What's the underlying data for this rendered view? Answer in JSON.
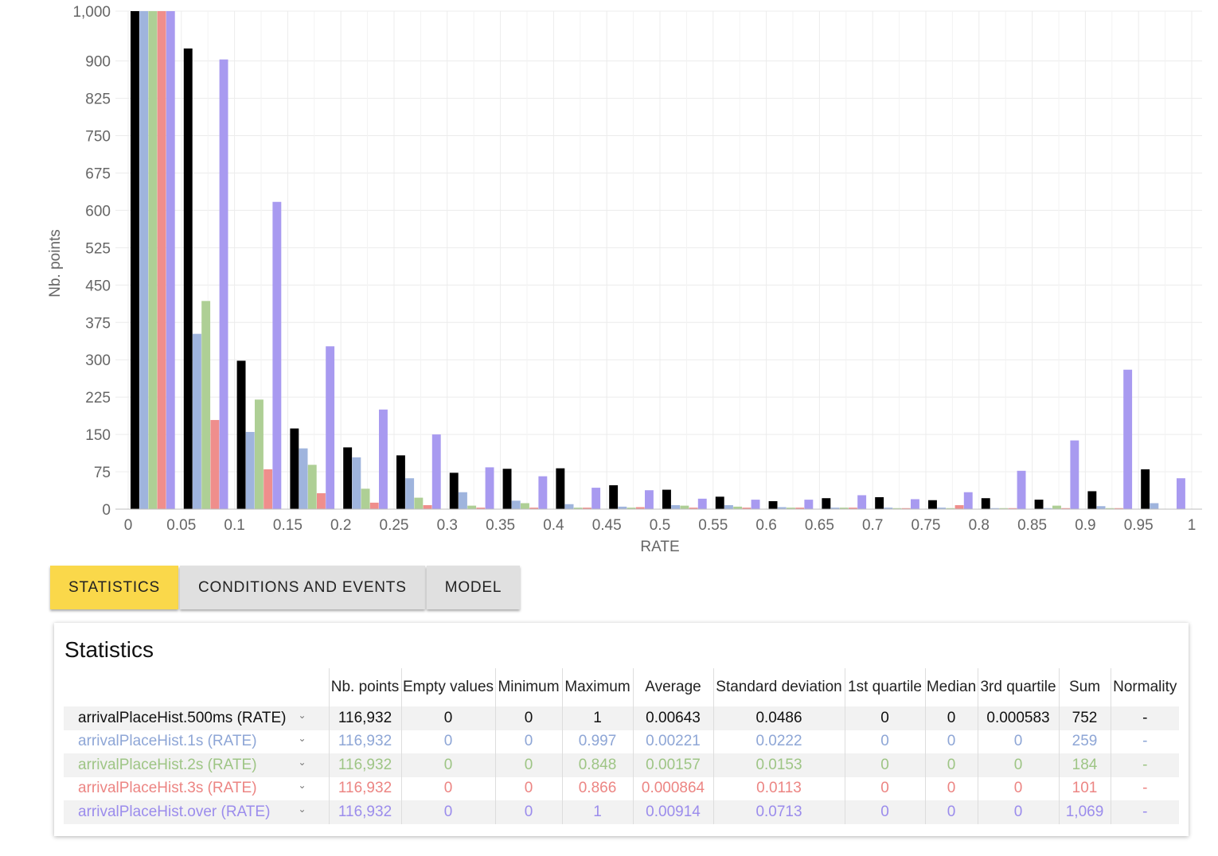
{
  "chart_data": {
    "type": "bar",
    "xlabel": "RATE",
    "ylabel": "Nb. points",
    "ylim": [
      0,
      1000
    ],
    "yticks": [
      0,
      75,
      150,
      225,
      300,
      375,
      450,
      525,
      600,
      675,
      750,
      825,
      900,
      1000
    ],
    "ytick_labels": [
      "0",
      "75",
      "150",
      "225",
      "300",
      "375",
      "450",
      "525",
      "600",
      "675",
      "750",
      "825",
      "900",
      "1,000"
    ],
    "xtick_labels": [
      "0",
      "0.05",
      "0.1",
      "0.15",
      "0.2",
      "0.25",
      "0.3",
      "0.35",
      "0.4",
      "0.45",
      "0.5",
      "0.55",
      "0.6",
      "0.65",
      "0.7",
      "0.75",
      "0.8",
      "0.85",
      "0.9",
      "0.95",
      "1"
    ],
    "x": [
      0,
      0.05,
      0.1,
      0.15,
      0.2,
      0.25,
      0.3,
      0.35,
      0.4,
      0.45,
      0.5,
      0.55,
      0.6,
      0.65,
      0.7,
      0.75,
      0.8,
      0.85,
      0.9,
      0.95,
      1
    ],
    "grid": true,
    "series": [
      {
        "name": "arrivalPlaceHist.500ms (RATE)",
        "color": "#000000",
        "values": [
          1000,
          925,
          298,
          162,
          124,
          108,
          73,
          81,
          82,
          48,
          39,
          25,
          16,
          22,
          24,
          18,
          22,
          19,
          36,
          80,
          0
        ]
      },
      {
        "name": "arrivalPlaceHist.1s (RATE)",
        "color": "#9fb4dd",
        "values": [
          1000,
          352,
          155,
          122,
          104,
          62,
          34,
          17,
          10,
          5,
          8,
          8,
          4,
          3,
          3,
          3,
          2,
          2,
          6,
          12,
          0
        ]
      },
      {
        "name": "arrivalPlaceHist.2s (RATE)",
        "color": "#aecf95",
        "values": [
          1000,
          418,
          220,
          89,
          41,
          23,
          7,
          12,
          3,
          3,
          7,
          5,
          3,
          3,
          2,
          2,
          2,
          7,
          2,
          0,
          0
        ]
      },
      {
        "name": "arrivalPlaceHist.3s (RATE)",
        "color": "#ef8e8c",
        "values": [
          1000,
          179,
          80,
          32,
          13,
          8,
          3,
          3,
          3,
          4,
          3,
          3,
          3,
          3,
          2,
          8,
          2,
          2,
          2,
          0,
          0
        ]
      },
      {
        "name": "arrivalPlaceHist.over (RATE)",
        "color": "#a89af0",
        "values": [
          1000,
          903,
          617,
          327,
          200,
          150,
          84,
          66,
          43,
          38,
          21,
          19,
          19,
          28,
          20,
          34,
          77,
          138,
          280,
          62,
          0
        ]
      }
    ]
  },
  "tabs": [
    {
      "label": "STATISTICS",
      "active": true
    },
    {
      "label": "CONDITIONS AND EVENTS",
      "active": false
    },
    {
      "label": "MODEL",
      "active": false
    }
  ],
  "statistics": {
    "title": "Statistics",
    "columns": [
      "Nb. points",
      "Empty values",
      "Minimum",
      "Maximum",
      "Average",
      "Standard deviation",
      "1st quartile",
      "Median",
      "3rd quartile",
      "Sum",
      "Normality"
    ],
    "rows": [
      {
        "name": "arrivalPlaceHist.500ms (RATE)",
        "color": "#111111",
        "values": [
          "116,932",
          "0",
          "0",
          "1",
          "0.00643",
          "0.0486",
          "0",
          "0",
          "0.000583",
          "752",
          "-"
        ]
      },
      {
        "name": "arrivalPlaceHist.1s (RATE)",
        "color": "#8ea6d6",
        "values": [
          "116,932",
          "0",
          "0",
          "0.997",
          "0.00221",
          "0.0222",
          "0",
          "0",
          "0",
          "259",
          "-"
        ]
      },
      {
        "name": "arrivalPlaceHist.2s (RATE)",
        "color": "#9ec585",
        "values": [
          "116,932",
          "0",
          "0",
          "0.848",
          "0.00157",
          "0.0153",
          "0",
          "0",
          "0",
          "184",
          "-"
        ]
      },
      {
        "name": "arrivalPlaceHist.3s (RATE)",
        "color": "#ec8583",
        "values": [
          "116,932",
          "0",
          "0",
          "0.866",
          "0.000864",
          "0.0113",
          "0",
          "0",
          "0",
          "101",
          "-"
        ]
      },
      {
        "name": "arrivalPlaceHist.over (RATE)",
        "color": "#9b8cec",
        "values": [
          "116,932",
          "0",
          "0",
          "1",
          "0.00914",
          "0.0713",
          "0",
          "0",
          "0",
          "1,069",
          "-"
        ]
      }
    ]
  }
}
